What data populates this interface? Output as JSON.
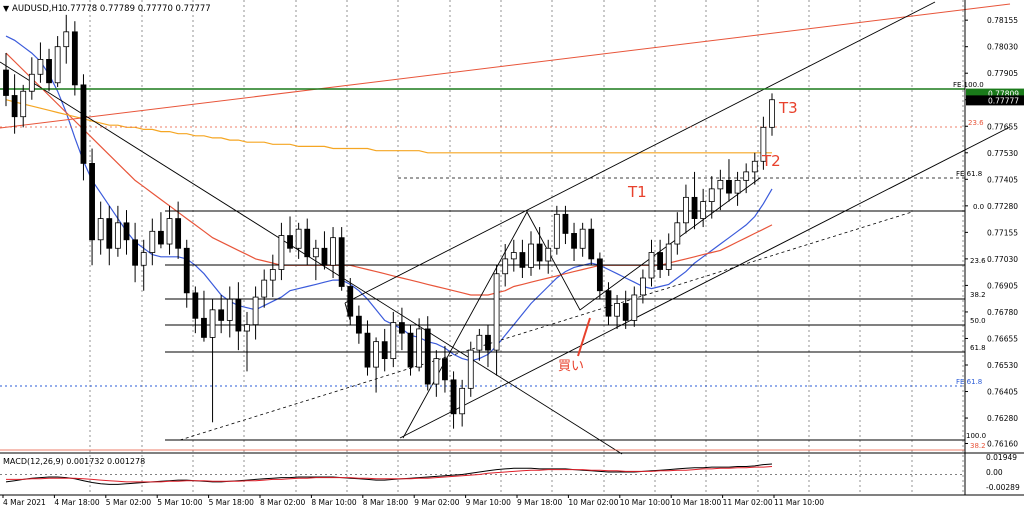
{
  "header": {
    "symbol_label": "AUDUSD,H1",
    "ohlc_text": "0.77778 0.77789 0.77770 0.77777"
  },
  "colors": {
    "bull_body": "#ffffff",
    "bear_body": "#000000",
    "candle_wick": "#000000",
    "ma_blue": "#3b5bdb",
    "ma_red": "#e8553a",
    "ma_orange": "#f5a623",
    "fib_line": "#000000",
    "price_line_green": "#1a7a1a",
    "annotation_red": "#e8412c",
    "fe_blue": "#2a5bd7",
    "macd_line": "#000000",
    "macd_signal": "#e0202a",
    "grid": "#000000"
  },
  "chart_data": [
    {
      "type": "candlestick",
      "title": "",
      "y_axis_ticks": [
        "0.78155",
        "0.78030",
        "0.77905",
        "0.77780",
        "0.77655",
        "0.77530",
        "0.77405",
        "0.77280",
        "0.77155",
        "0.77030",
        "0.76905",
        "0.76780",
        "0.76655",
        "0.76530",
        "0.76405",
        "0.76280",
        "0.76160"
      ],
      "ylim": [
        0.7612,
        0.7825
      ],
      "x_axis_labels": [
        "4 Mar 2021",
        "4 Mar 18:00",
        "5 Mar 02:00",
        "5 Mar 10:00",
        "5 Mar 18:00",
        "8 Mar 02:00",
        "8 Mar 10:00",
        "8 Mar 18:00",
        "9 Mar 02:00",
        "9 Mar 10:00",
        "9 Mar 18:00",
        "10 Mar 02:00",
        "10 Mar 10:00",
        "10 Mar 18:00",
        "11 Mar 02:00",
        "11 Mar 10:00"
      ],
      "current_price": "0.77777",
      "fe_100_price": "0.77809",
      "candles": [
        [
          0.7792,
          0.78,
          0.7775,
          0.778
        ],
        [
          0.778,
          0.779,
          0.7762,
          0.777
        ],
        [
          0.777,
          0.7785,
          0.7765,
          0.7782
        ],
        [
          0.7782,
          0.7798,
          0.7778,
          0.779
        ],
        [
          0.779,
          0.7805,
          0.7786,
          0.7797
        ],
        [
          0.7797,
          0.7802,
          0.7782,
          0.7786
        ],
        [
          0.7786,
          0.7808,
          0.7784,
          0.7803
        ],
        [
          0.7803,
          0.7818,
          0.7795,
          0.781
        ],
        [
          0.781,
          0.7815,
          0.778,
          0.7785
        ],
        [
          0.7785,
          0.779,
          0.774,
          0.7748
        ],
        [
          0.7748,
          0.7755,
          0.77,
          0.7712
        ],
        [
          0.7712,
          0.773,
          0.7705,
          0.7722
        ],
        [
          0.7722,
          0.7728,
          0.77,
          0.7708
        ],
        [
          0.7708,
          0.7728,
          0.7704,
          0.772
        ],
        [
          0.772,
          0.7726,
          0.7705,
          0.7712
        ],
        [
          0.7712,
          0.772,
          0.7692,
          0.77
        ],
        [
          0.77,
          0.7712,
          0.7688,
          0.7706
        ],
        [
          0.7706,
          0.7722,
          0.77,
          0.7716
        ],
        [
          0.7716,
          0.7725,
          0.7708,
          0.771
        ],
        [
          0.771,
          0.7728,
          0.7705,
          0.7722
        ],
        [
          0.7722,
          0.773,
          0.7703,
          0.7708
        ],
        [
          0.7708,
          0.7712,
          0.768,
          0.7687
        ],
        [
          0.7687,
          0.769,
          0.7668,
          0.7675
        ],
        [
          0.7675,
          0.7688,
          0.7664,
          0.7666
        ],
        [
          0.7666,
          0.7684,
          0.7626,
          0.7679
        ],
        [
          0.7679,
          0.7686,
          0.7668,
          0.7674
        ],
        [
          0.7674,
          0.769,
          0.7666,
          0.7684
        ],
        [
          0.7684,
          0.7692,
          0.766,
          0.7669
        ],
        [
          0.7669,
          0.7678,
          0.765,
          0.7672
        ],
        [
          0.7672,
          0.769,
          0.7665,
          0.7685
        ],
        [
          0.7685,
          0.7698,
          0.768,
          0.7693
        ],
        [
          0.7693,
          0.7705,
          0.7685,
          0.7698
        ],
        [
          0.7698,
          0.772,
          0.7693,
          0.7714
        ],
        [
          0.7714,
          0.7723,
          0.7706,
          0.7708
        ],
        [
          0.7708,
          0.772,
          0.7703,
          0.7717
        ],
        [
          0.7717,
          0.7722,
          0.77,
          0.7704
        ],
        [
          0.7704,
          0.7712,
          0.7693,
          0.7708
        ],
        [
          0.7708,
          0.7716,
          0.7698,
          0.77
        ],
        [
          0.77,
          0.7718,
          0.7694,
          0.7713
        ],
        [
          0.7713,
          0.7718,
          0.7688,
          0.769
        ],
        [
          0.769,
          0.7694,
          0.7672,
          0.7676
        ],
        [
          0.7676,
          0.7681,
          0.7663,
          0.7668
        ],
        [
          0.7668,
          0.7674,
          0.7648,
          0.7652
        ],
        [
          0.7652,
          0.7666,
          0.764,
          0.7664
        ],
        [
          0.7664,
          0.767,
          0.765,
          0.7656
        ],
        [
          0.7656,
          0.7678,
          0.7652,
          0.7673
        ],
        [
          0.7673,
          0.768,
          0.766,
          0.7668
        ],
        [
          0.7668,
          0.7672,
          0.7648,
          0.7652
        ],
        [
          0.7652,
          0.7675,
          0.765,
          0.767
        ],
        [
          0.767,
          0.7676,
          0.7641,
          0.7644
        ],
        [
          0.7644,
          0.766,
          0.7638,
          0.7656
        ],
        [
          0.7656,
          0.7662,
          0.764,
          0.7646
        ],
        [
          0.7646,
          0.765,
          0.7623,
          0.763
        ],
        [
          0.763,
          0.7646,
          0.7624,
          0.7642
        ],
        [
          0.7642,
          0.7664,
          0.7638,
          0.766
        ],
        [
          0.766,
          0.767,
          0.7655,
          0.7667
        ],
        [
          0.7667,
          0.7672,
          0.7652,
          0.766
        ],
        [
          0.766,
          0.77,
          0.7648,
          0.7696
        ],
        [
          0.7696,
          0.771,
          0.769,
          0.7703
        ],
        [
          0.7703,
          0.7712,
          0.7697,
          0.7706
        ],
        [
          0.7706,
          0.7712,
          0.7694,
          0.7699
        ],
        [
          0.7699,
          0.7716,
          0.7695,
          0.771
        ],
        [
          0.771,
          0.7718,
          0.7698,
          0.7702
        ],
        [
          0.7702,
          0.7712,
          0.7696,
          0.7708
        ],
        [
          0.7708,
          0.7728,
          0.7705,
          0.7724
        ],
        [
          0.7724,
          0.7728,
          0.771,
          0.7715
        ],
        [
          0.7715,
          0.772,
          0.7702,
          0.7708
        ],
        [
          0.7708,
          0.772,
          0.7704,
          0.7717
        ],
        [
          0.7717,
          0.7722,
          0.77,
          0.7703
        ],
        [
          0.7703,
          0.7706,
          0.7684,
          0.7688
        ],
        [
          0.7688,
          0.7692,
          0.7672,
          0.7676
        ],
        [
          0.7676,
          0.7686,
          0.767,
          0.7682
        ],
        [
          0.7682,
          0.7688,
          0.767,
          0.7674
        ],
        [
          0.7674,
          0.769,
          0.7671,
          0.7686
        ],
        [
          0.7686,
          0.7698,
          0.7682,
          0.7694
        ],
        [
          0.7694,
          0.7712,
          0.769,
          0.7706
        ],
        [
          0.7706,
          0.7712,
          0.7694,
          0.7698
        ],
        [
          0.7698,
          0.7715,
          0.7695,
          0.771
        ],
        [
          0.771,
          0.7725,
          0.7705,
          0.772
        ],
        [
          0.772,
          0.7738,
          0.7715,
          0.7732
        ],
        [
          0.7732,
          0.7744,
          0.7717,
          0.7722
        ],
        [
          0.7722,
          0.7736,
          0.7718,
          0.773
        ],
        [
          0.773,
          0.7742,
          0.7722,
          0.7736
        ],
        [
          0.7736,
          0.7745,
          0.7726,
          0.774
        ],
        [
          0.774,
          0.775,
          0.773,
          0.7734
        ],
        [
          0.7734,
          0.7744,
          0.7728,
          0.774
        ],
        [
          0.774,
          0.7748,
          0.7734,
          0.7744
        ],
        [
          0.7744,
          0.7753,
          0.7738,
          0.7749
        ],
        [
          0.7749,
          0.777,
          0.7745,
          0.7765
        ],
        [
          0.7765,
          0.7781,
          0.7761,
          0.7778
        ]
      ],
      "series": [
        {
          "values": [
            0.7808,
            0.7806,
            0.7803,
            0.78,
            0.7796,
            0.779,
            0.7782,
            0.7772,
            0.776,
            0.7749,
            0.774,
            0.7734,
            0.7728,
            0.7722,
            0.7716,
            0.7711,
            0.7708,
            0.7705,
            0.7704,
            0.7704,
            0.7704,
            0.7703,
            0.77,
            0.7696,
            0.7691,
            0.7686,
            0.7683,
            0.7681,
            0.768,
            0.7679,
            0.7681,
            0.7683,
            0.7685,
            0.7688,
            0.7689,
            0.769,
            0.7691,
            0.7692,
            0.7693,
            0.7693,
            0.7691,
            0.7688,
            0.7684,
            0.7679,
            0.7674,
            0.7672,
            0.767,
            0.7667,
            0.7666,
            0.7664,
            0.7663,
            0.7661,
            0.7658,
            0.7656,
            0.7655,
            0.7656,
            0.7658,
            0.7662,
            0.7667,
            0.7672,
            0.7677,
            0.7682,
            0.7686,
            0.769,
            0.7694,
            0.7697,
            0.7699,
            0.77,
            0.7701,
            0.77,
            0.7698,
            0.7696,
            0.7694,
            0.7692,
            0.769,
            0.7689,
            0.769,
            0.7691,
            0.7694,
            0.7697,
            0.7701,
            0.7704,
            0.7707,
            0.771,
            0.7713,
            0.7716,
            0.7719,
            0.7723,
            0.7729,
            0.7736
          ]
        },
        {
          "values": [
            0.78,
            0.7796,
            0.7792,
            0.7788,
            0.7784,
            0.778,
            0.7776,
            0.7772,
            0.7768,
            0.7764,
            0.776,
            0.7756,
            0.7752,
            0.7748,
            0.7744,
            0.774,
            0.7737,
            0.7734,
            0.7731,
            0.7728,
            0.7725,
            0.7722,
            0.7719,
            0.7716,
            0.7713,
            0.7711,
            0.7709,
            0.7707,
            0.7705,
            0.7703,
            0.7702,
            0.7701,
            0.77,
            0.77,
            0.77,
            0.77,
            0.77,
            0.77,
            0.77,
            0.77,
            0.77,
            0.7699,
            0.7698,
            0.7697,
            0.7696,
            0.7695,
            0.7694,
            0.7693,
            0.7692,
            0.7691,
            0.769,
            0.7689,
            0.7688,
            0.7687,
            0.7686,
            0.7686,
            0.7686,
            0.7687,
            0.7688,
            0.769,
            0.7691,
            0.7692,
            0.7693,
            0.7694,
            0.7695,
            0.7696,
            0.7697,
            0.7698,
            0.7699,
            0.77,
            0.77,
            0.77,
            0.77,
            0.77,
            0.77,
            0.77,
            0.77,
            0.7701,
            0.7702,
            0.7703,
            0.7704,
            0.7705,
            0.7706,
            0.7707,
            0.7709,
            0.7711,
            0.7713,
            0.7715,
            0.7717,
            0.7719
          ]
        },
        {
          "values": [
            0.7778,
            0.7777,
            0.7776,
            0.7775,
            0.7774,
            0.7773,
            0.7772,
            0.7771,
            0.777,
            0.7769,
            0.7768,
            0.7767,
            0.7766,
            0.7766,
            0.7765,
            0.7765,
            0.7764,
            0.7764,
            0.7763,
            0.7763,
            0.7762,
            0.7762,
            0.7761,
            0.7761,
            0.776,
            0.776,
            0.7759,
            0.7759,
            0.7758,
            0.7758,
            0.7758,
            0.7757,
            0.7757,
            0.7757,
            0.7756,
            0.7756,
            0.7756,
            0.7756,
            0.7755,
            0.7755,
            0.7755,
            0.7755,
            0.7755,
            0.7754,
            0.7754,
            0.7754,
            0.7754,
            0.7754,
            0.7754,
            0.7753,
            0.7753,
            0.7753,
            0.7753,
            0.7753,
            0.7753,
            0.7753,
            0.7753,
            0.7753,
            0.7753,
            0.7753,
            0.7753,
            0.7753,
            0.7753,
            0.7753,
            0.7753,
            0.7753,
            0.7753,
            0.7753,
            0.7753,
            0.7753,
            0.7753,
            0.7753,
            0.7753,
            0.7753,
            0.7753,
            0.7753,
            0.7753,
            0.7753,
            0.7753,
            0.7753,
            0.7753,
            0.7753,
            0.7753,
            0.7753,
            0.7753,
            0.7753,
            0.7753,
            0.7753,
            0.7753,
            0.7753
          ]
        }
      ],
      "level_labels": {
        "fe100": "FE 100.0",
        "fib236_upper": "23.6",
        "fe618": "FE 61.8",
        "zero": "0.0",
        "fib236": "23.6",
        "fib382": "38.2",
        "fib50": "50.0",
        "fib618": "61.8",
        "fe618_blue": "FE 61.8",
        "hundred": "100.0",
        "fib382_low": "38.2"
      },
      "annotations": {
        "t1": "T1",
        "t2": "T2",
        "t3": "T3",
        "buy": "買い"
      }
    },
    {
      "type": "line",
      "title": "MACD(12,26,9) 0.001732 0.001278",
      "y_axis_ticks": [
        "0.01949",
        "0.00",
        "-0.00289"
      ],
      "series": [
        {
          "values": [
            -0.0012,
            -0.001,
            -0.0008,
            -0.0006,
            -0.0005,
            -0.0004,
            -0.0004,
            -0.0005,
            -0.0007,
            -0.001,
            -0.0013,
            -0.0015,
            -0.0016,
            -0.0016,
            -0.0015,
            -0.0014,
            -0.0013,
            -0.0012,
            -0.0011,
            -0.001,
            -0.0009,
            -0.0009,
            -0.001,
            -0.0011,
            -0.0012,
            -0.0012,
            -0.0011,
            -0.001,
            -0.0009,
            -0.0008,
            -0.0007,
            -0.0006,
            -0.0005,
            -0.0005,
            -0.0004,
            -0.0004,
            -0.0004,
            -0.0004,
            -0.0004,
            -0.0005,
            -0.0006,
            -0.0007,
            -0.0008,
            -0.0009,
            -0.0009,
            -0.0008,
            -0.0007,
            -0.0006,
            -0.0005,
            -0.0004,
            -0.0003,
            -0.0002,
            -0.0001,
            0.0,
            0.0002,
            0.0004,
            0.0006,
            0.0008,
            0.0009,
            0.001,
            0.001,
            0.001,
            0.0009,
            0.0009,
            0.0009,
            0.0009,
            0.0008,
            0.0007,
            0.0006,
            0.0005,
            0.0004,
            0.0004,
            0.0004,
            0.0004,
            0.0005,
            0.0006,
            0.0007,
            0.0008,
            0.0009,
            0.001,
            0.0011,
            0.0011,
            0.0012,
            0.0012,
            0.0012,
            0.0013,
            0.0013,
            0.0014,
            0.0016,
            0.0017
          ]
        },
        {
          "values": [
            -0.0008,
            -0.0008,
            -0.0008,
            -0.0007,
            -0.0007,
            -0.0006,
            -0.0006,
            -0.0006,
            -0.0006,
            -0.0007,
            -0.0008,
            -0.0009,
            -0.001,
            -0.0011,
            -0.0012,
            -0.0012,
            -0.0012,
            -0.0012,
            -0.0012,
            -0.0011,
            -0.0011,
            -0.001,
            -0.001,
            -0.001,
            -0.0011,
            -0.0011,
            -0.0011,
            -0.0011,
            -0.001,
            -0.001,
            -0.0009,
            -0.0008,
            -0.0008,
            -0.0007,
            -0.0006,
            -0.0006,
            -0.0005,
            -0.0005,
            -0.0005,
            -0.0005,
            -0.0005,
            -0.0006,
            -0.0006,
            -0.0007,
            -0.0007,
            -0.0007,
            -0.0007,
            -0.0007,
            -0.0006,
            -0.0006,
            -0.0005,
            -0.0004,
            -0.0003,
            -0.0002,
            -0.0001,
            0.0,
            0.0002,
            0.0003,
            0.0004,
            0.0005,
            0.0006,
            0.0007,
            0.0007,
            0.0008,
            0.0008,
            0.0008,
            0.0008,
            0.0008,
            0.0007,
            0.0007,
            0.0006,
            0.0006,
            0.0005,
            0.0005,
            0.0005,
            0.0005,
            0.0006,
            0.0006,
            0.0007,
            0.0007,
            0.0008,
            0.0009,
            0.0009,
            0.001,
            0.001,
            0.0011,
            0.0011,
            0.0012,
            0.0012,
            0.0013
          ]
        }
      ]
    }
  ]
}
